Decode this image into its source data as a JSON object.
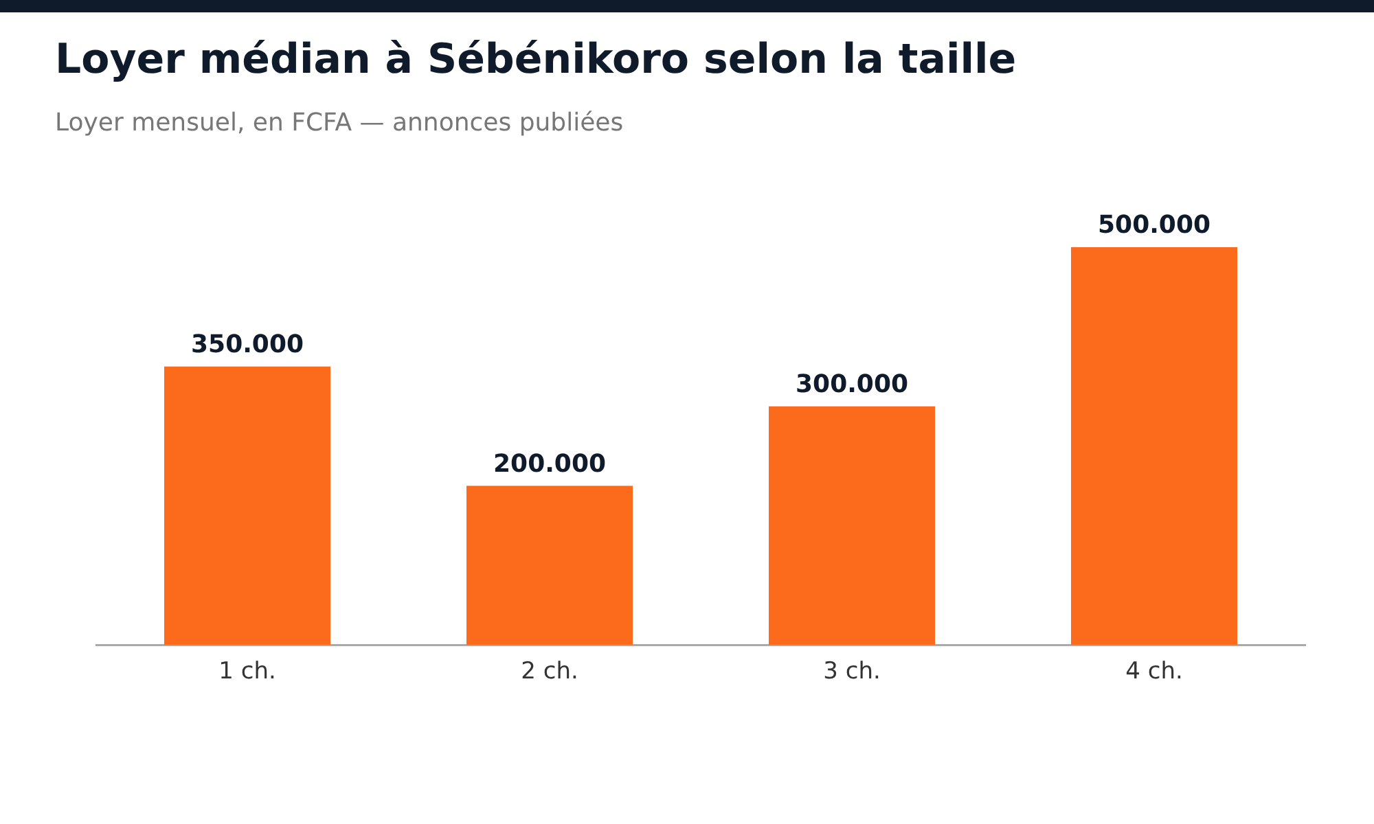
{
  "chart_data": {
    "type": "bar",
    "title": "Loyer médian à Sébénikoro selon la taille",
    "subtitle": "Loyer mensuel, en FCFA — annonces publiées",
    "categories": [
      "1 ch.",
      "2 ch.",
      "3 ch.",
      "4 ch."
    ],
    "values": [
      350000,
      200000,
      300000,
      500000
    ],
    "value_labels": [
      "350.000",
      "200.000",
      "300.000",
      "500.000"
    ],
    "color": "#fc6b1b"
  }
}
